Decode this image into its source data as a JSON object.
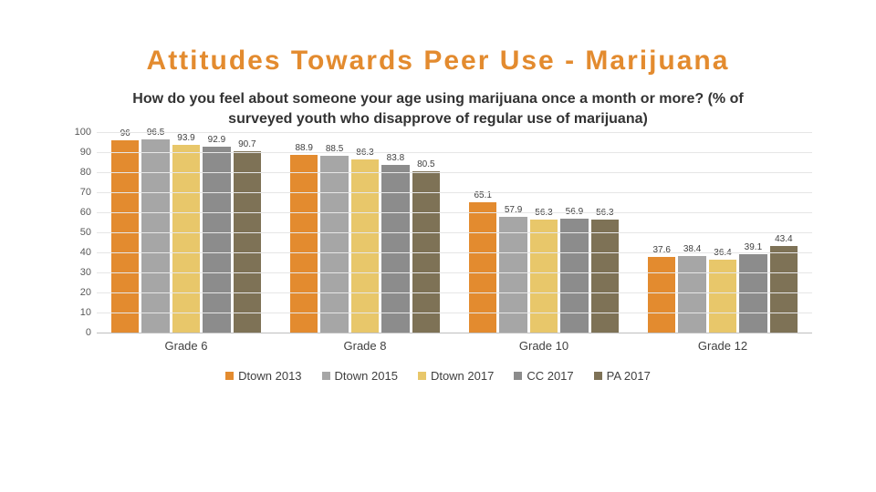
{
  "title": "Attitudes Towards Peer Use - Marijuana",
  "subtitle": "How do you feel about someone your age using marijuana once a month or more?  (% of surveyed youth who disapprove of regular use of marijuana)",
  "chart": {
    "type": "bar-grouped",
    "ylim": [
      0,
      100
    ],
    "ytick_step": 10,
    "grid_color": "#e6e6e6",
    "axis_color": "#bfbfbf",
    "label_fontsize": 10,
    "axis_fontsize": 11,
    "category_fontsize": 13,
    "series": [
      {
        "name": "Dtown 2013",
        "color": "#e38b2f"
      },
      {
        "name": "Dtown 2015",
        "color": "#a6a6a6"
      },
      {
        "name": "Dtown 2017",
        "color": "#e8c76a"
      },
      {
        "name": "CC 2017",
        "color": "#8c8c8c"
      },
      {
        "name": "PA 2017",
        "color": "#7e7256"
      }
    ],
    "categories": [
      "Grade 6",
      "Grade 8",
      "Grade 10",
      "Grade 12"
    ],
    "data": [
      [
        96.0,
        96.5,
        93.9,
        92.9,
        90.7
      ],
      [
        88.9,
        88.5,
        86.3,
        83.8,
        80.5
      ],
      [
        65.1,
        57.9,
        56.3,
        56.9,
        56.3
      ],
      [
        37.6,
        38.4,
        36.4,
        39.1,
        43.4
      ]
    ],
    "data_labels": [
      [
        "96",
        "96.5",
        "93.9",
        "92.9",
        "90.7"
      ],
      [
        "88.9",
        "88.5",
        "86.3",
        "83.8",
        "80.5"
      ],
      [
        "65.1",
        "57.9",
        "56.3",
        "56.9",
        "56.3"
      ],
      [
        "37.6",
        "38.4",
        "36.4",
        "39.1",
        "43.4"
      ]
    ]
  }
}
